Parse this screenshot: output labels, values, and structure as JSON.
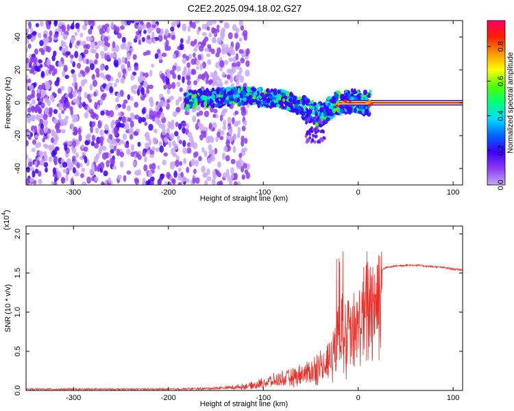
{
  "title": "C2E2.2025.094.18.02.G27",
  "chart_data": [
    {
      "type": "heatmap",
      "xlabel": "Height of straight line (km)",
      "ylabel": "Frequency (Hz)",
      "xlim": [
        -350,
        110
      ],
      "ylim": [
        -50,
        50
      ],
      "xticks": [
        -300,
        -200,
        -100,
        0,
        100
      ],
      "yticks": [
        -40,
        -20,
        0,
        20,
        40
      ],
      "colorbar": {
        "label": "Normalized spectral amplitude",
        "range": [
          0.0,
          0.95
        ],
        "ticks": [
          "0.0",
          "0.2",
          "0.4",
          "0.6",
          "0.8"
        ],
        "colors": [
          "#f2e6ff",
          "#c8a8f8",
          "#8c3cf0",
          "#3c00ff",
          "#0064ff",
          "#00dcff",
          "#00ff7a",
          "#50ff00",
          "#ffff00",
          "#ff9600",
          "#ff1e00",
          "#ff0064"
        ]
      },
      "features": {
        "noise_region_x": [
          -350,
          -140
        ],
        "carrier_frequency": 0,
        "carrier_start_x": -20,
        "ridge": [
          [
            -180,
            2
          ],
          [
            -150,
            3
          ],
          [
            -120,
            4
          ],
          [
            -100,
            3
          ],
          [
            -80,
            2
          ],
          [
            -60,
            -2
          ],
          [
            -50,
            -5
          ],
          [
            -40,
            -7
          ],
          [
            -30,
            -3
          ],
          [
            -20,
            0
          ],
          [
            -10,
            1
          ],
          [
            0,
            1
          ],
          [
            10,
            0
          ]
        ]
      }
    },
    {
      "type": "line",
      "xlabel": "Height of straight line (km)",
      "ylabel": "SNR (10 * v/v)",
      "y_multiplier": "(x10",
      "y_multiplier_exp": "4",
      "xlim": [
        -350,
        110
      ],
      "ylim": [
        0,
        2.1
      ],
      "xticks": [
        -300,
        -200,
        -100,
        0,
        100
      ],
      "yticks": [
        "0.0",
        "0.5",
        "1.0",
        "1.5",
        "2.0"
      ],
      "color": "#e8302a",
      "series": [
        {
          "x": [
            -350,
            -300,
            -250,
            -200,
            -160,
            -130,
            -110,
            -100,
            -90,
            -80,
            -70,
            -60,
            -50,
            -40,
            -30,
            -25,
            -20,
            -17,
            -15,
            -10,
            -5,
            0,
            5,
            10,
            15,
            20,
            30,
            40,
            50,
            60,
            70,
            80,
            90,
            100,
            110
          ],
          "values": [
            0.02,
            0.02,
            0.02,
            0.02,
            0.03,
            0.05,
            0.08,
            0.12,
            0.15,
            0.18,
            0.2,
            0.25,
            0.3,
            0.38,
            0.5,
            0.65,
            0.9,
            1.2,
            0.9,
            0.85,
            0.9,
            1.0,
            1.15,
            1.35,
            1.45,
            1.52,
            1.57,
            1.59,
            1.6,
            1.6,
            1.59,
            1.58,
            1.57,
            1.55,
            1.54
          ]
        }
      ]
    }
  ]
}
